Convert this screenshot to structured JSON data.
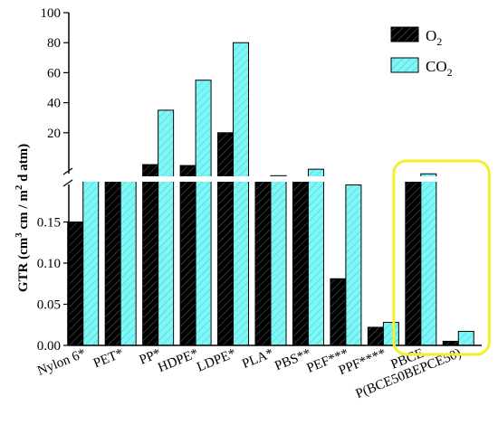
{
  "chart_data": {
    "type": "bar",
    "categories": [
      "Nylon 6*",
      "PET*",
      "PP*",
      "HDPE*",
      "LDPE*",
      "PLA*",
      "PBS**",
      "PEF***",
      "PPF****",
      "PBCE",
      "P(BCE50BEPCE50)"
    ],
    "series": [
      {
        "name": "O",
        "name_sub": "2",
        "color": "#000000",
        "pattern": "hatched",
        "values": [
          0.15,
          1.5,
          9,
          8.5,
          20,
          1.2,
          1.3,
          0.081,
          0.022,
          1.2,
          0.005
        ]
      },
      {
        "name": "CO",
        "name_sub": "2",
        "color": "#7ff6f6",
        "pattern": "hatched",
        "values": [
          1.0,
          1.2,
          35,
          55,
          80,
          3,
          6.5,
          0.195,
          0.028,
          4,
          0.017
        ]
      }
    ],
    "ylabel": "GTR (cm³ cm / m² d atm)",
    "ylabel_parts": {
      "a": "GTR (cm",
      "b": "3",
      "c": " cm / m",
      "d": "2",
      "e": " d atm)"
    },
    "y_axis": {
      "broken": true,
      "lower": {
        "range": [
          0,
          0.2
        ],
        "ticks": [
          "0.00",
          "0.05",
          "0.10",
          "0.15"
        ]
      },
      "upper": {
        "range": [
          0,
          100
        ],
        "ticks": [
          "20",
          "40",
          "60",
          "80",
          "100"
        ]
      }
    },
    "highlight": {
      "categories": [
        "PBCE",
        "P(BCE50BEPCE50)"
      ],
      "color": "#f5ef2a"
    },
    "legend": "top-right"
  }
}
